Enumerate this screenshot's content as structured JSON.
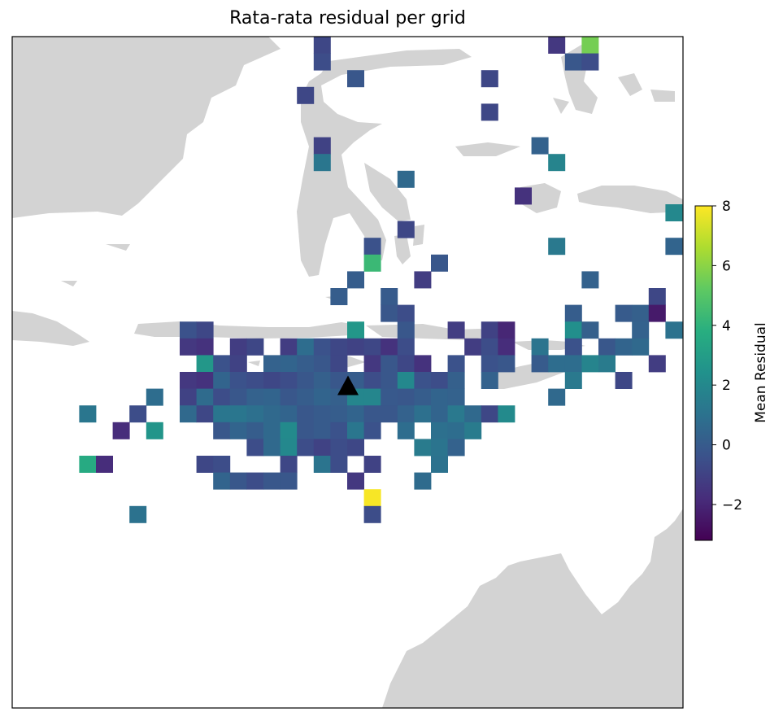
{
  "title": "Rata-rata residual per grid",
  "colorbar": {
    "label": "Mean Residual",
    "min": -3.2,
    "max": 8,
    "ticks": [
      8,
      6,
      4,
      2,
      0,
      -2
    ],
    "tick_labels": [
      "8",
      "6",
      "4",
      "2",
      "0",
      "−2"
    ],
    "colormap": "viridis"
  },
  "colors": {
    "land": "#d3d3d3",
    "ocean": "#ffffff",
    "frame": "#000000",
    "marker": "#000000"
  },
  "station_marker": {
    "shape": "triangle-up",
    "col": 20,
    "row": 20.8
  },
  "chart_data": {
    "type": "heatmap",
    "title": "Rata-rata residual per grid",
    "grid_columns": 40,
    "grid_rows": 40,
    "value_label": "Mean Residual",
    "vmin": -3.2,
    "vmax": 8,
    "cells": [
      [
        32,
        0,
        -1.4
      ],
      [
        34,
        0,
        5.6
      ],
      [
        18,
        0,
        -0.8
      ],
      [
        18,
        1,
        -0.6
      ],
      [
        33,
        1,
        -0.2
      ],
      [
        34,
        1,
        -0.6
      ],
      [
        20,
        2,
        -0.2
      ],
      [
        28,
        2,
        -0.8
      ],
      [
        17,
        3,
        -0.8
      ],
      [
        28,
        4,
        -0.8
      ],
      [
        18,
        6,
        -1.0
      ],
      [
        31,
        6,
        0.3
      ],
      [
        18,
        7,
        1.2
      ],
      [
        32,
        7,
        1.8
      ],
      [
        23,
        8,
        0.6
      ],
      [
        30,
        9,
        -1.6
      ],
      [
        39,
        10,
        2.0
      ],
      [
        23,
        11,
        -0.8
      ],
      [
        21,
        12,
        -0.4
      ],
      [
        32,
        12,
        1.3
      ],
      [
        39,
        12,
        0.4
      ],
      [
        21,
        13,
        4.3
      ],
      [
        25,
        13,
        -0.2
      ],
      [
        20,
        14,
        0.1
      ],
      [
        24,
        14,
        -1.2
      ],
      [
        34,
        14,
        0.3
      ],
      [
        19,
        15,
        0.1
      ],
      [
        22,
        15,
        0.0
      ],
      [
        38,
        15,
        -0.8
      ],
      [
        22,
        16,
        -0.2
      ],
      [
        23,
        16,
        -0.6
      ],
      [
        33,
        16,
        0.1
      ],
      [
        36,
        16,
        0.0
      ],
      [
        37,
        16,
        0.2
      ],
      [
        38,
        16,
        -2.4
      ],
      [
        10,
        17,
        -0.4
      ],
      [
        11,
        17,
        -0.8
      ],
      [
        20,
        17,
        2.7
      ],
      [
        23,
        17,
        -0.2
      ],
      [
        26,
        17,
        -1.2
      ],
      [
        28,
        17,
        -1.0
      ],
      [
        29,
        17,
        -2.0
      ],
      [
        33,
        17,
        2.3
      ],
      [
        34,
        17,
        0.2
      ],
      [
        37,
        17,
        0.3
      ],
      [
        39,
        17,
        1.0
      ],
      [
        10,
        18,
        -1.4
      ],
      [
        11,
        18,
        -1.6
      ],
      [
        13,
        18,
        -1.2
      ],
      [
        14,
        18,
        -0.8
      ],
      [
        16,
        18,
        -1.2
      ],
      [
        17,
        18,
        0.8
      ],
      [
        18,
        18,
        -0.4
      ],
      [
        19,
        18,
        -0.8
      ],
      [
        20,
        18,
        -1.0
      ],
      [
        21,
        18,
        -0.8
      ],
      [
        22,
        18,
        -1.6
      ],
      [
        23,
        18,
        -0.6
      ],
      [
        27,
        18,
        -1.2
      ],
      [
        28,
        18,
        -0.6
      ],
      [
        29,
        18,
        -1.8
      ],
      [
        31,
        18,
        1.1
      ],
      [
        33,
        18,
        -0.4
      ],
      [
        35,
        18,
        -0.2
      ],
      [
        36,
        18,
        0.4
      ],
      [
        37,
        18,
        0.6
      ],
      [
        11,
        19,
        2.7
      ],
      [
        12,
        19,
        -0.4
      ],
      [
        13,
        19,
        -1.0
      ],
      [
        15,
        19,
        0.3
      ],
      [
        16,
        19,
        0.4
      ],
      [
        17,
        19,
        0.1
      ],
      [
        18,
        19,
        -0.2
      ],
      [
        19,
        19,
        -0.8
      ],
      [
        21,
        19,
        -1.4
      ],
      [
        22,
        19,
        -0.2
      ],
      [
        23,
        19,
        -0.8
      ],
      [
        24,
        19,
        -1.6
      ],
      [
        26,
        19,
        -0.4
      ],
      [
        28,
        19,
        -0.4
      ],
      [
        29,
        19,
        -0.2
      ],
      [
        31,
        19,
        0.0
      ],
      [
        32,
        19,
        0.8
      ],
      [
        33,
        19,
        0.8
      ],
      [
        34,
        19,
        1.8
      ],
      [
        35,
        19,
        1.4
      ],
      [
        38,
        19,
        -1.2
      ],
      [
        10,
        20,
        -1.4
      ],
      [
        11,
        20,
        -1.6
      ],
      [
        12,
        20,
        0.4
      ],
      [
        13,
        20,
        -0.4
      ],
      [
        14,
        20,
        -0.6
      ],
      [
        15,
        20,
        -0.8
      ],
      [
        16,
        20,
        -0.6
      ],
      [
        17,
        20,
        -0.2
      ],
      [
        18,
        20,
        0.2
      ],
      [
        19,
        20,
        -0.2
      ],
      [
        20,
        20,
        0.1
      ],
      [
        21,
        20,
        -0.6
      ],
      [
        22,
        20,
        -0.2
      ],
      [
        23,
        20,
        2.0
      ],
      [
        24,
        20,
        -0.4
      ],
      [
        25,
        20,
        -0.6
      ],
      [
        26,
        20,
        0.2
      ],
      [
        28,
        20,
        0.3
      ],
      [
        33,
        20,
        1.3
      ],
      [
        36,
        20,
        -0.8
      ],
      [
        8,
        21,
        0.8
      ],
      [
        10,
        21,
        -1.0
      ],
      [
        11,
        21,
        0.7
      ],
      [
        12,
        21,
        -0.6
      ],
      [
        13,
        21,
        -0.2
      ],
      [
        14,
        21,
        0.3
      ],
      [
        15,
        21,
        0.4
      ],
      [
        16,
        21,
        -0.2
      ],
      [
        17,
        21,
        0.1
      ],
      [
        18,
        21,
        0.4
      ],
      [
        19,
        21,
        0.2
      ],
      [
        20,
        21,
        1.9
      ],
      [
        21,
        21,
        1.9
      ],
      [
        22,
        21,
        -0.1
      ],
      [
        23,
        21,
        -0.2
      ],
      [
        24,
        21,
        0.1
      ],
      [
        25,
        21,
        0.4
      ],
      [
        26,
        21,
        0.3
      ],
      [
        32,
        21,
        0.6
      ],
      [
        4,
        22,
        1.2
      ],
      [
        7,
        22,
        -0.6
      ],
      [
        10,
        22,
        0.6
      ],
      [
        11,
        22,
        -0.8
      ],
      [
        12,
        22,
        1.2
      ],
      [
        13,
        22,
        1.2
      ],
      [
        14,
        22,
        0.9
      ],
      [
        15,
        22,
        0.6
      ],
      [
        16,
        22,
        0.4
      ],
      [
        17,
        22,
        -0.2
      ],
      [
        18,
        22,
        0.0
      ],
      [
        19,
        22,
        0.1
      ],
      [
        20,
        22,
        0.4
      ],
      [
        21,
        22,
        -0.2
      ],
      [
        22,
        22,
        -0.2
      ],
      [
        23,
        22,
        0.3
      ],
      [
        24,
        22,
        0.9
      ],
      [
        25,
        22,
        0.4
      ],
      [
        26,
        22,
        1.3
      ],
      [
        27,
        22,
        0.6
      ],
      [
        28,
        22,
        -0.8
      ],
      [
        29,
        22,
        2.1
      ],
      [
        6,
        23,
        -1.8
      ],
      [
        8,
        23,
        2.6
      ],
      [
        12,
        23,
        -0.2
      ],
      [
        13,
        23,
        0.4
      ],
      [
        14,
        23,
        0.1
      ],
      [
        15,
        23,
        0.6
      ],
      [
        16,
        23,
        2.1
      ],
      [
        17,
        23,
        -0.2
      ],
      [
        18,
        23,
        0.0
      ],
      [
        19,
        23,
        -0.4
      ],
      [
        20,
        23,
        1.2
      ],
      [
        21,
        23,
        -0.4
      ],
      [
        23,
        23,
        0.8
      ],
      [
        25,
        23,
        0.9
      ],
      [
        26,
        23,
        0.8
      ],
      [
        27,
        23,
        1.4
      ],
      [
        14,
        24,
        -0.6
      ],
      [
        15,
        24,
        0.6
      ],
      [
        16,
        24,
        2.0
      ],
      [
        17,
        24,
        -0.6
      ],
      [
        18,
        24,
        -1.0
      ],
      [
        19,
        24,
        -0.6
      ],
      [
        20,
        24,
        -0.8
      ],
      [
        24,
        24,
        1.4
      ],
      [
        25,
        24,
        1.1
      ],
      [
        26,
        24,
        0.3
      ],
      [
        4,
        25,
        3.6
      ],
      [
        5,
        25,
        -1.8
      ],
      [
        11,
        25,
        -0.8
      ],
      [
        12,
        25,
        -0.6
      ],
      [
        16,
        25,
        -0.8
      ],
      [
        18,
        25,
        1.1
      ],
      [
        19,
        25,
        -0.6
      ],
      [
        21,
        25,
        -1.0
      ],
      [
        25,
        25,
        1.0
      ],
      [
        12,
        26,
        0.4
      ],
      [
        13,
        26,
        -0.2
      ],
      [
        14,
        26,
        -0.6
      ],
      [
        15,
        26,
        -0.2
      ],
      [
        16,
        26,
        -0.2
      ],
      [
        20,
        26,
        -1.4
      ],
      [
        24,
        26,
        0.7
      ],
      [
        21,
        27,
        7.9
      ],
      [
        7,
        28,
        1.0
      ],
      [
        21,
        28,
        -0.6
      ]
    ]
  }
}
